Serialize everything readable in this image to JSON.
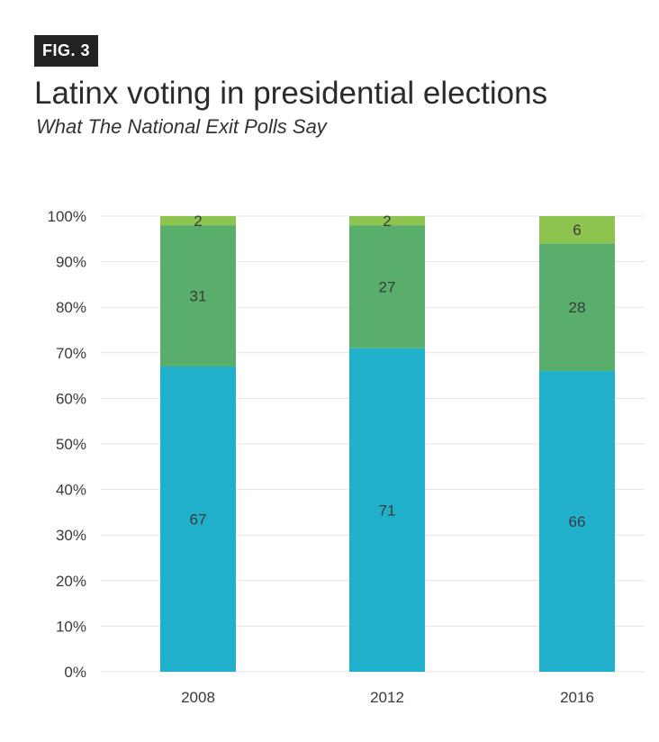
{
  "header": {
    "badge": "FIG. 3",
    "title": "Latinx voting in presidential elections",
    "subtitle": "What The National Exit Polls Say"
  },
  "chart_data": {
    "type": "bar",
    "stacked": true,
    "title": "Latinx voting in presidential elections",
    "subtitle": "What The National Exit Polls Say",
    "xlabel": "",
    "ylabel": "",
    "categories": [
      "2008",
      "2012",
      "2016"
    ],
    "series": [
      {
        "values": [
          67,
          71,
          66
        ],
        "color": "#21b0cc"
      },
      {
        "values": [
          31,
          27,
          28
        ],
        "color": "#5aae6b"
      },
      {
        "values": [
          2,
          2,
          6
        ],
        "color": "#8dc450"
      }
    ],
    "ylim": [
      0,
      100
    ],
    "yticks": [
      "0%",
      "10%",
      "20%",
      "30%",
      "40%",
      "50%",
      "60%",
      "70%",
      "80%",
      "90%",
      "100%"
    ],
    "grid": true,
    "legend": "none"
  }
}
